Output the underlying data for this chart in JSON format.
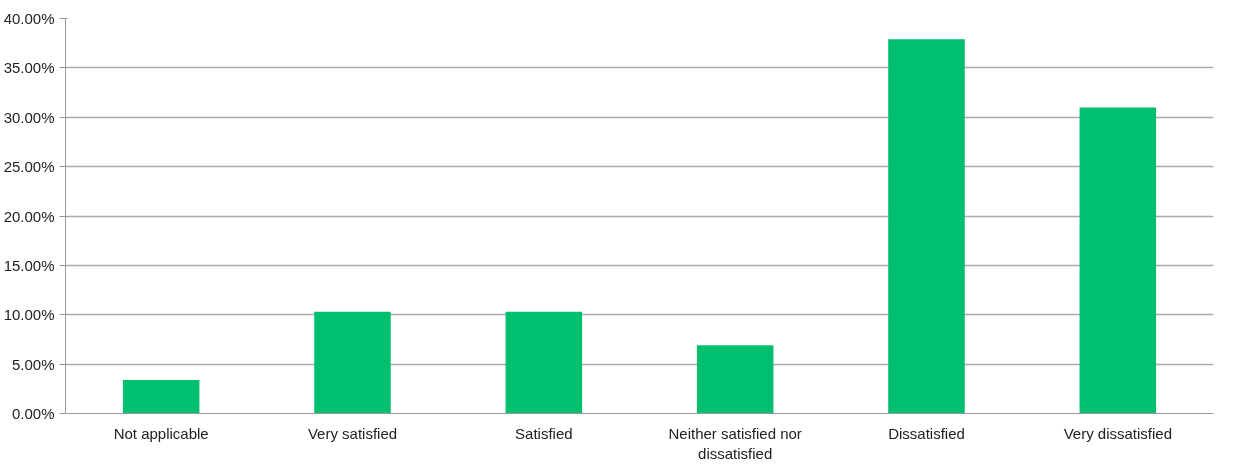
{
  "chart_data": {
    "type": "bar",
    "categories": [
      "Not applicable",
      "Very satisfied",
      "Satisfied",
      "Neither satisfied nor dissatisfied",
      "Dissatisfied",
      "Very dissatisfied"
    ],
    "values": [
      3.4,
      10.3,
      10.3,
      6.9,
      37.9,
      31.0
    ],
    "color": "#00bf6f",
    "ylim": [
      0,
      40
    ],
    "yticks": [
      {
        "value": 0,
        "label": "0.00%"
      },
      {
        "value": 5,
        "label": "5.00%"
      },
      {
        "value": 10,
        "label": "10.00%"
      },
      {
        "value": 15,
        "label": "15.00%"
      },
      {
        "value": 20,
        "label": "20.00%"
      },
      {
        "value": 25,
        "label": "25.00%"
      },
      {
        "value": 30,
        "label": "30.00%"
      },
      {
        "value": 35,
        "label": "35.00%"
      },
      {
        "value": 40,
        "label": "40.00%"
      }
    ],
    "grid": "y"
  }
}
